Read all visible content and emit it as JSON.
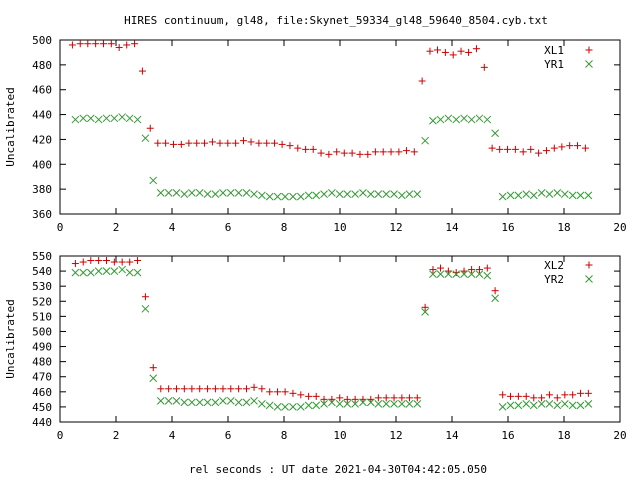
{
  "title": "HIRES continuum, gl48, file:Skynet_59334_gl48_59640_8504.cyb.txt",
  "xlabel": "rel seconds : UT date 2021-04-30T04:42:05.050",
  "chart_data": [
    {
      "type": "scatter",
      "ylabel": "Uncalibrated",
      "xlim": [
        0,
        20
      ],
      "ylim": [
        360,
        500
      ],
      "xticks": [
        0,
        2,
        4,
        6,
        8,
        10,
        12,
        14,
        16,
        18,
        20
      ],
      "yticks": [
        360,
        380,
        400,
        420,
        440,
        460,
        480,
        500
      ],
      "legend_position": "top-right",
      "series": [
        {
          "name": "XL1",
          "marker": "plus",
          "color": "#cc0000",
          "x": [
            0.55,
            0.83,
            1.1,
            1.38,
            1.66,
            1.94,
            2.22,
            2.49,
            2.77,
            3.05,
            3.33,
            3.6,
            3.88,
            4.16,
            4.44,
            4.71,
            4.99,
            5.27,
            5.55,
            5.82,
            6.1,
            6.38,
            6.66,
            6.93,
            7.21,
            7.49,
            7.77,
            8.04,
            8.32,
            8.6,
            8.88,
            9.15,
            9.43,
            9.71,
            9.99,
            10.26,
            10.54,
            10.82,
            11.1,
            11.37,
            11.65,
            11.93,
            12.21,
            12.48,
            12.76,
            13.04,
            13.32,
            13.59,
            13.87,
            14.15,
            14.43,
            14.7,
            14.98,
            15.26,
            15.54,
            15.81,
            16.09,
            16.37,
            16.65,
            16.92,
            17.2,
            17.48,
            17.76,
            18.03,
            18.31,
            18.59,
            18.87
          ],
          "y": [
            496,
            497,
            497,
            497,
            497,
            497,
            494,
            496,
            497,
            475,
            429,
            417,
            417,
            416,
            416,
            417,
            417,
            417,
            418,
            417,
            417,
            417,
            419,
            418,
            417,
            417,
            417,
            416,
            415,
            413,
            412,
            412,
            409,
            408,
            410,
            409,
            409,
            408,
            408,
            410,
            410,
            410,
            410,
            411,
            410,
            467,
            491,
            492,
            490,
            488,
            491,
            490,
            493,
            478,
            413,
            412,
            412,
            412,
            410,
            412,
            409,
            411,
            413,
            414,
            415,
            415,
            413
          ],
          "display": "shifted"
        },
        {
          "name": "YR1",
          "marker": "cross",
          "color": "#339933",
          "x": [
            0.55,
            0.83,
            1.1,
            1.38,
            1.66,
            1.94,
            2.22,
            2.49,
            2.77,
            3.05,
            3.33,
            3.6,
            3.88,
            4.16,
            4.44,
            4.71,
            4.99,
            5.27,
            5.55,
            5.82,
            6.1,
            6.38,
            6.66,
            6.93,
            7.21,
            7.49,
            7.77,
            8.04,
            8.32,
            8.6,
            8.88,
            9.15,
            9.43,
            9.71,
            9.99,
            10.26,
            10.54,
            10.82,
            11.1,
            11.37,
            11.65,
            11.93,
            12.21,
            12.48,
            12.76,
            13.04,
            13.32,
            13.59,
            13.87,
            14.15,
            14.43,
            14.7,
            14.98,
            15.26,
            15.54,
            15.81,
            16.09,
            16.37,
            16.65,
            16.92,
            17.2,
            17.48,
            17.76,
            18.03,
            18.31,
            18.59,
            18.87
          ],
          "y": [
            436,
            437,
            437,
            436,
            437,
            437,
            438,
            437,
            436,
            421,
            387,
            377,
            377,
            377,
            376,
            377,
            377,
            376,
            376,
            377,
            377,
            377,
            377,
            376,
            375,
            374,
            374,
            374,
            374,
            374,
            375,
            375,
            376,
            377,
            376,
            376,
            376,
            377,
            376,
            376,
            376,
            376,
            375,
            376,
            376,
            419,
            435,
            436,
            437,
            436,
            437,
            436,
            437,
            436,
            425,
            374,
            375,
            375,
            376,
            375,
            377,
            376,
            377,
            376,
            375,
            375,
            375
          ]
        }
      ]
    },
    {
      "type": "scatter",
      "ylabel": "Uncalibrated",
      "xlim": [
        0,
        20
      ],
      "ylim": [
        440,
        550
      ],
      "xticks": [
        0,
        2,
        4,
        6,
        8,
        10,
        12,
        14,
        16,
        18,
        20
      ],
      "yticks": [
        440,
        450,
        460,
        470,
        480,
        490,
        500,
        510,
        520,
        530,
        540,
        550
      ],
      "legend_position": "top-right",
      "series": [
        {
          "name": "XL2",
          "marker": "plus",
          "color": "#cc0000",
          "x": [
            0.55,
            0.83,
            1.1,
            1.38,
            1.66,
            1.94,
            2.22,
            2.49,
            2.77,
            3.05,
            3.33,
            3.6,
            3.88,
            4.16,
            4.44,
            4.71,
            4.99,
            5.27,
            5.55,
            5.82,
            6.1,
            6.38,
            6.66,
            6.93,
            7.21,
            7.49,
            7.77,
            8.04,
            8.32,
            8.6,
            8.88,
            9.15,
            9.43,
            9.71,
            9.99,
            10.26,
            10.54,
            10.82,
            11.1,
            11.37,
            11.65,
            11.93,
            12.21,
            12.48,
            12.76,
            13.04,
            13.32,
            13.59,
            13.87,
            14.15,
            14.43,
            14.7,
            14.98,
            15.26,
            15.54,
            15.81,
            16.09,
            16.37,
            16.65,
            16.92,
            17.2,
            17.48,
            17.76,
            18.03,
            18.31,
            18.59,
            18.87
          ],
          "y": [
            545,
            546,
            547,
            547,
            547,
            546,
            546,
            546,
            547,
            523,
            476,
            462,
            462,
            462,
            462,
            462,
            462,
            462,
            462,
            462,
            462,
            462,
            462,
            463,
            462,
            460,
            460,
            460,
            459,
            458,
            457,
            457,
            455,
            455,
            456,
            455,
            455,
            455,
            455,
            456,
            456,
            456,
            456,
            456,
            456,
            516,
            541,
            542,
            540,
            539,
            540,
            541,
            541,
            542,
            527,
            458,
            457,
            457,
            457,
            456,
            456,
            458,
            456,
            458,
            458,
            459,
            459
          ]
        },
        {
          "name": "YR2",
          "marker": "cross",
          "color": "#339933",
          "x": [
            0.55,
            0.83,
            1.1,
            1.38,
            1.66,
            1.94,
            2.22,
            2.49,
            2.77,
            3.05,
            3.33,
            3.6,
            3.88,
            4.16,
            4.44,
            4.71,
            4.99,
            5.27,
            5.55,
            5.82,
            6.1,
            6.38,
            6.66,
            6.93,
            7.21,
            7.49,
            7.77,
            8.04,
            8.32,
            8.6,
            8.88,
            9.15,
            9.43,
            9.71,
            9.99,
            10.26,
            10.54,
            10.82,
            11.1,
            11.37,
            11.65,
            11.93,
            12.21,
            12.48,
            12.76,
            13.04,
            13.32,
            13.59,
            13.87,
            14.15,
            14.43,
            14.7,
            14.98,
            15.26,
            15.54,
            15.81,
            16.09,
            16.37,
            16.65,
            16.92,
            17.2,
            17.48,
            17.76,
            18.03,
            18.31,
            18.59,
            18.87
          ],
          "y": [
            539,
            539,
            539,
            540,
            540,
            540,
            541,
            539,
            539,
            515,
            469,
            454,
            454,
            454,
            453,
            453,
            453,
            453,
            453,
            454,
            454,
            453,
            453,
            454,
            452,
            451,
            450,
            450,
            450,
            450,
            451,
            451,
            452,
            453,
            452,
            452,
            452,
            453,
            453,
            452,
            452,
            452,
            452,
            452,
            452,
            513,
            538,
            538,
            538,
            538,
            538,
            538,
            538,
            537,
            522,
            450,
            451,
            451,
            452,
            451,
            452,
            452,
            451,
            452,
            451,
            451,
            452
          ]
        }
      ]
    }
  ]
}
